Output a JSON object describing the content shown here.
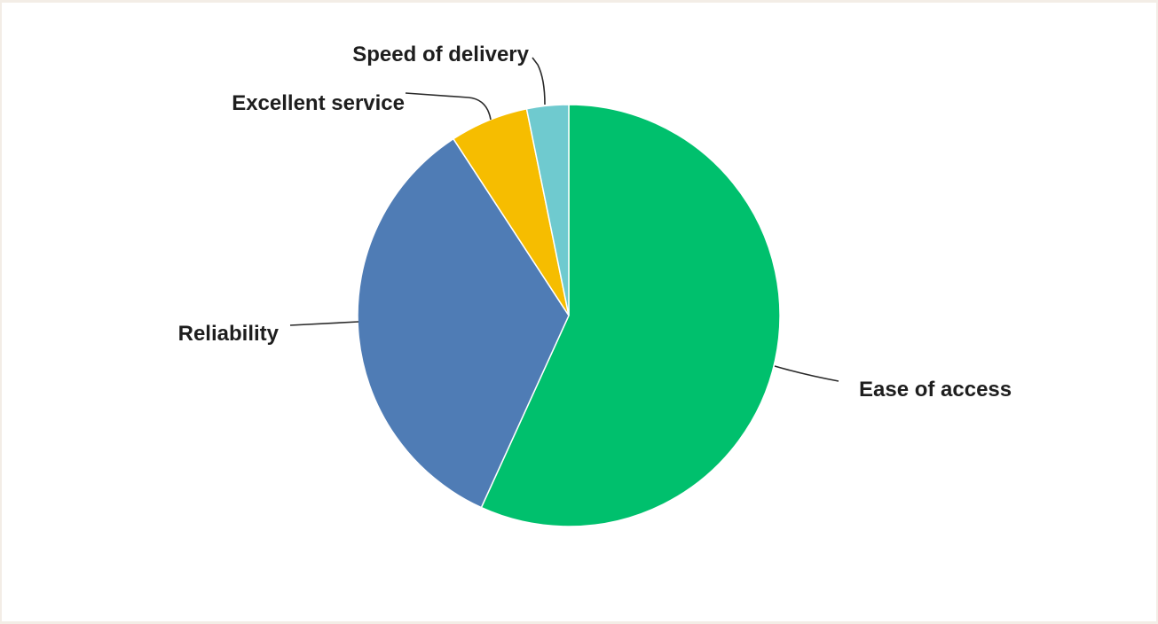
{
  "chart_data": {
    "type": "pie",
    "title": "",
    "start_angle_deg": 0,
    "direction": "clockwise",
    "slices": [
      {
        "label": "Ease of access",
        "value": 56.8,
        "color": "#00c06d"
      },
      {
        "label": "Reliability",
        "value": 34.0,
        "color": "#4f7cb5"
      },
      {
        "label": "Excellent service",
        "value": 6.0,
        "color": "#f6bd00"
      },
      {
        "label": "Speed of delivery",
        "value": 3.2,
        "color": "#6fcacf"
      }
    ]
  }
}
